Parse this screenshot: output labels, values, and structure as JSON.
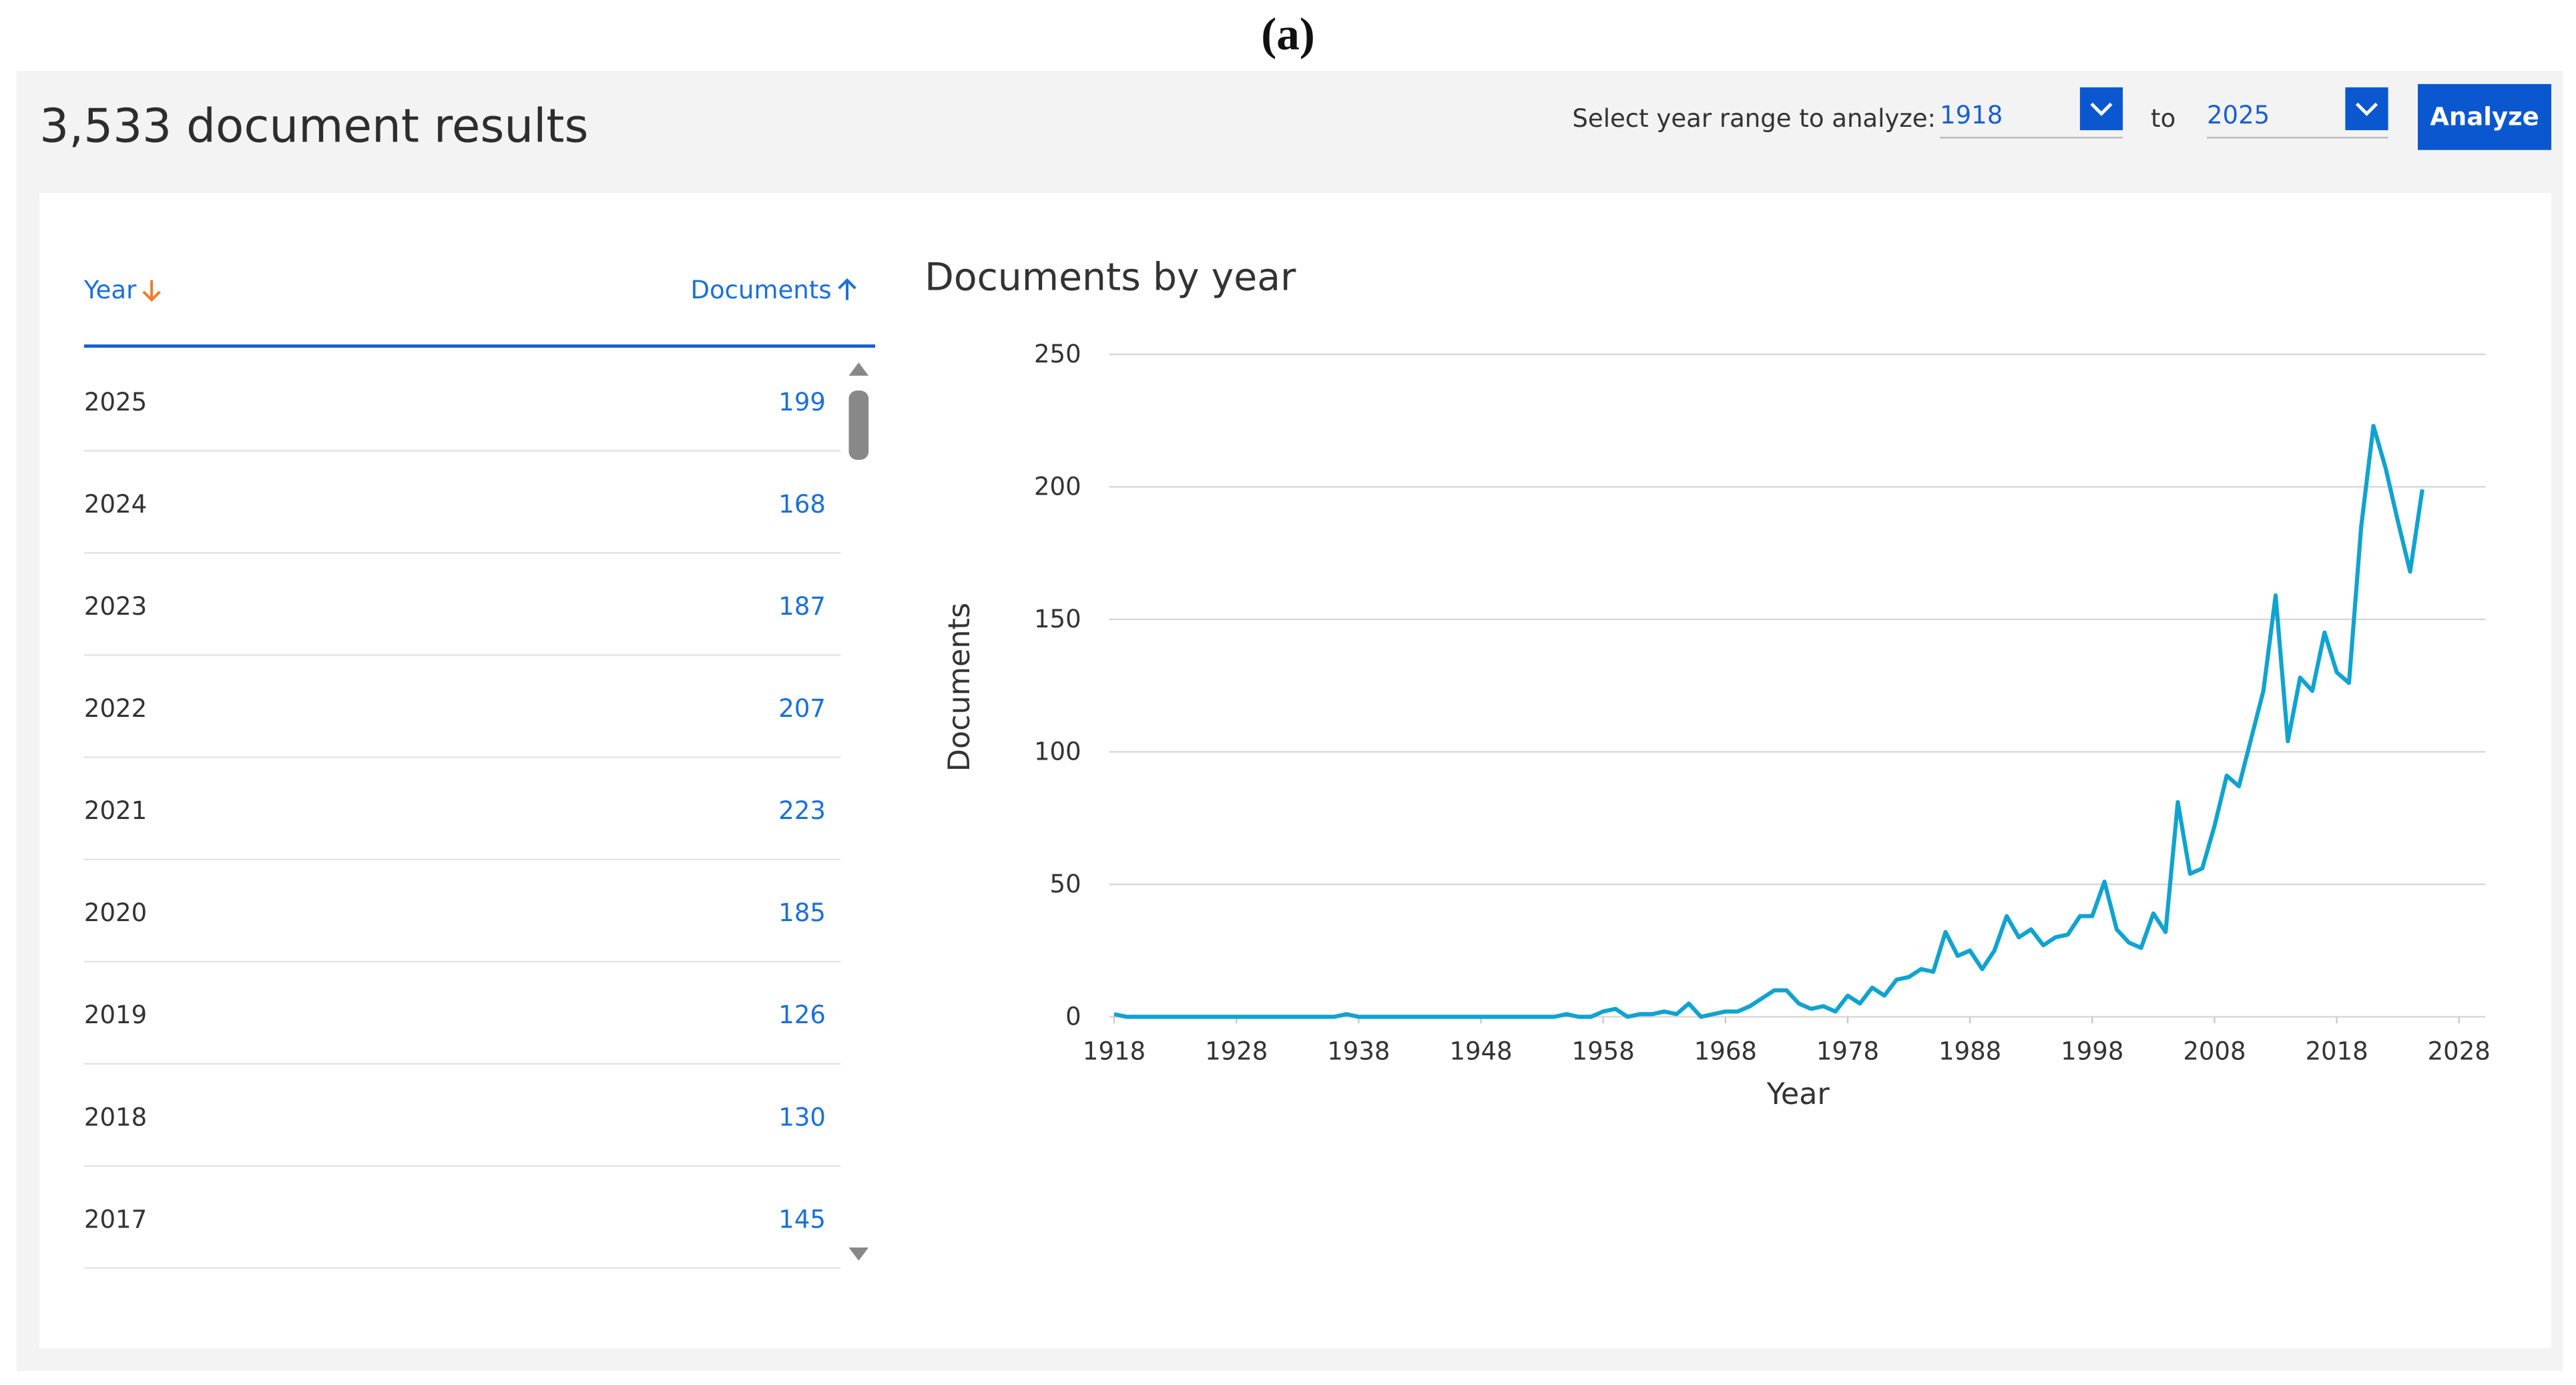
{
  "caption": "(a)",
  "header": {
    "title": "3,533 document results",
    "range_label": "Select year range to analyze:",
    "from": "1918",
    "to_label": "to",
    "to": "2025",
    "button": "Analyze"
  },
  "table": {
    "columns": [
      "Year",
      "Documents"
    ],
    "rows": [
      [
        2025,
        199
      ],
      [
        2024,
        168
      ],
      [
        2023,
        187
      ],
      [
        2022,
        207
      ],
      [
        2021,
        223
      ],
      [
        2020,
        185
      ],
      [
        2019,
        126
      ],
      [
        2018,
        130
      ],
      [
        2017,
        145
      ]
    ]
  },
  "chart_data": {
    "type": "line",
    "title": "Documents by year",
    "x_label": "Year",
    "y_label": "Documents",
    "color": "#10a3cf",
    "grid": true,
    "x": [
      1918,
      1919,
      1920,
      1921,
      1922,
      1923,
      1924,
      1925,
      1926,
      1927,
      1928,
      1929,
      1930,
      1931,
      1932,
      1933,
      1934,
      1935,
      1936,
      1937,
      1938,
      1939,
      1940,
      1941,
      1942,
      1943,
      1944,
      1945,
      1946,
      1947,
      1948,
      1949,
      1950,
      1951,
      1952,
      1953,
      1954,
      1955,
      1956,
      1957,
      1958,
      1959,
      1960,
      1961,
      1962,
      1963,
      1964,
      1965,
      1966,
      1967,
      1968,
      1969,
      1970,
      1971,
      1972,
      1973,
      1974,
      1975,
      1976,
      1977,
      1978,
      1979,
      1980,
      1981,
      1982,
      1983,
      1984,
      1985,
      1986,
      1987,
      1988,
      1989,
      1990,
      1991,
      1992,
      1993,
      1994,
      1995,
      1996,
      1997,
      1998,
      1999,
      2000,
      2001,
      2002,
      2003,
      2004,
      2005,
      2006,
      2007,
      2008,
      2009,
      2010,
      2011,
      2012,
      2013,
      2014,
      2015,
      2016,
      2017,
      2018,
      2019,
      2020,
      2021,
      2022,
      2023,
      2024,
      2025
    ],
    "values": [
      1,
      0,
      0,
      0,
      0,
      0,
      0,
      0,
      0,
      0,
      0,
      0,
      0,
      0,
      0,
      0,
      0,
      0,
      0,
      1,
      0,
      0,
      0,
      0,
      0,
      0,
      0,
      0,
      0,
      0,
      0,
      0,
      0,
      0,
      0,
      0,
      0,
      1,
      0,
      0,
      2,
      3,
      0,
      1,
      1,
      2,
      1,
      5,
      0,
      1,
      2,
      2,
      4,
      7,
      10,
      10,
      5,
      3,
      4,
      2,
      8,
      5,
      11,
      8,
      14,
      15,
      18,
      17,
      32,
      23,
      25,
      18,
      25,
      38,
      30,
      33,
      27,
      30,
      31,
      38,
      38,
      51,
      33,
      28,
      26,
      39,
      32,
      81,
      54,
      56,
      72,
      91,
      87,
      105,
      123,
      159,
      104,
      128,
      123,
      145,
      130,
      126,
      185,
      223,
      207,
      187,
      168,
      199
    ],
    "xlim": [
      1918,
      2028
    ],
    "xticks": [
      1918,
      1928,
      1938,
      1948,
      1958,
      1968,
      1978,
      1988,
      1998,
      2008,
      2018,
      2028
    ],
    "ylim": [
      0,
      250
    ],
    "yticks": [
      0,
      50,
      100,
      150,
      200,
      250
    ]
  }
}
